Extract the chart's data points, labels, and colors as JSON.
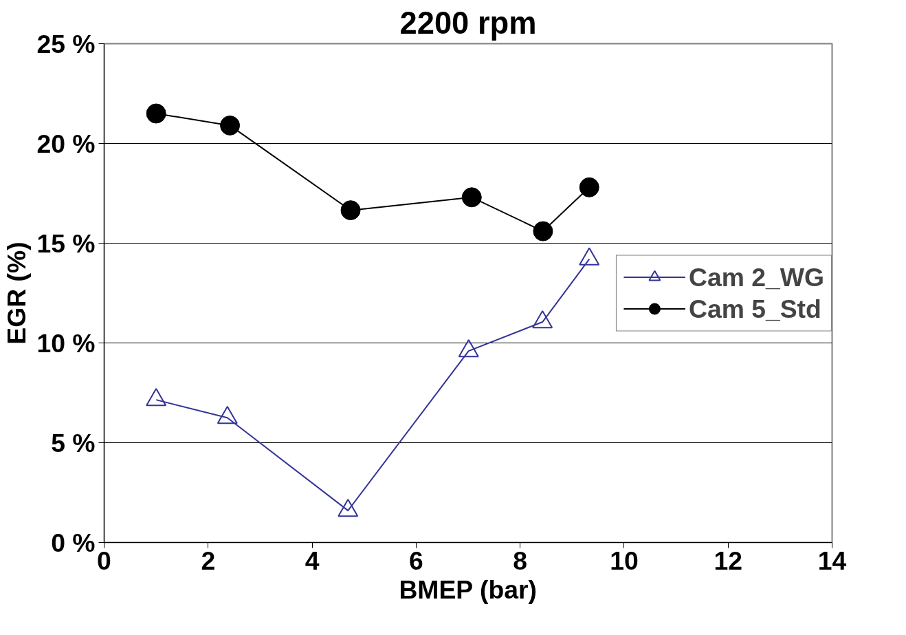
{
  "chart_data": {
    "type": "line",
    "title": "2200 rpm",
    "xlabel": "BMEP (bar)",
    "ylabel": "EGR (%)",
    "xlim": [
      0,
      14
    ],
    "xticks": [
      0,
      2,
      4,
      6,
      8,
      10,
      12,
      14
    ],
    "ylim": [
      0,
      25
    ],
    "yticks": [
      {
        "value": 0,
        "label": "0 %"
      },
      {
        "value": 5,
        "label": "5 %"
      },
      {
        "value": 10,
        "label": "10 %"
      },
      {
        "value": 15,
        "label": "15 %"
      },
      {
        "value": 20,
        "label": "20 %"
      },
      {
        "value": 25,
        "label": "25 %"
      }
    ],
    "grid": "y",
    "legend": "right",
    "series": [
      {
        "name": "Cam 2_WG",
        "color": "#333399",
        "marker": "triangle",
        "x": [
          1.0,
          2.37,
          4.69,
          7.01,
          8.43,
          9.33
        ],
        "values": [
          7.15,
          6.25,
          1.6,
          9.6,
          11.05,
          14.2
        ]
      },
      {
        "name": "Cam 5_Std",
        "color": "#000000",
        "marker": "circle",
        "x": [
          1.0,
          2.42,
          4.74,
          7.07,
          8.44,
          9.33
        ],
        "values": [
          21.5,
          20.9,
          16.65,
          17.3,
          15.6,
          17.8
        ]
      }
    ]
  }
}
